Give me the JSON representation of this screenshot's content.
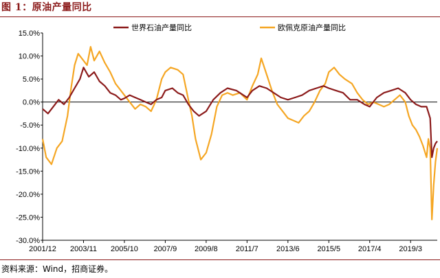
{
  "figure": {
    "label": "图 1：原油产量同比",
    "source": "资料来源：Wind，招商证券。"
  },
  "chart_data": {
    "type": "line",
    "title": "",
    "xlabel": "",
    "ylabel": "",
    "ylim": [
      -30,
      15
    ],
    "yticks": [
      "15.0%",
      "10.0%",
      "5.0%",
      "0.0%",
      "-5.0%",
      "-10.0%",
      "-15.0%",
      "-20.0%",
      "-25.0%",
      "-30.0%"
    ],
    "xticks": [
      "2001/12",
      "2003/11",
      "2005/10",
      "2007/9",
      "2009/8",
      "2011/7",
      "2013/6",
      "2015/5",
      "2017/4",
      "2019/3"
    ],
    "x_domain": [
      "2001/12",
      "2020/6"
    ],
    "legend_position": "top",
    "colors": {
      "world": "#8b1a1a",
      "opec": "#f5a623",
      "zero_line": "#000000"
    },
    "series": [
      {
        "name": "世界石油产量同比",
        "color": "#8b1a1a",
        "points": [
          [
            "2001/12",
            -1.5
          ],
          [
            "2002/3",
            -2.5
          ],
          [
            "2002/6",
            -1.0
          ],
          [
            "2002/9",
            0.5
          ],
          [
            "2002/12",
            -0.5
          ],
          [
            "2003/3",
            1.0
          ],
          [
            "2003/6",
            3.0
          ],
          [
            "2003/9",
            5.0
          ],
          [
            "2003/11",
            7.5
          ],
          [
            "2004/2",
            5.5
          ],
          [
            "2004/5",
            6.5
          ],
          [
            "2004/8",
            4.5
          ],
          [
            "2004/11",
            3.5
          ],
          [
            "2005/2",
            2.0
          ],
          [
            "2005/5",
            1.5
          ],
          [
            "2005/8",
            0.5
          ],
          [
            "2005/10",
            0.8
          ],
          [
            "2006/1",
            1.5
          ],
          [
            "2006/4",
            1.0
          ],
          [
            "2006/7",
            0.5
          ],
          [
            "2006/10",
            0.0
          ],
          [
            "2007/1",
            -0.5
          ],
          [
            "2007/4",
            0.5
          ],
          [
            "2007/7",
            1.0
          ],
          [
            "2007/9",
            2.5
          ],
          [
            "2008/1",
            3.0
          ],
          [
            "2008/4",
            2.0
          ],
          [
            "2008/7",
            1.5
          ],
          [
            "2008/10",
            -0.5
          ],
          [
            "2009/1",
            -2.0
          ],
          [
            "2009/4",
            -3.0
          ],
          [
            "2009/8",
            -2.0
          ],
          [
            "2009/12",
            0.5
          ],
          [
            "2010/4",
            2.0
          ],
          [
            "2010/8",
            3.0
          ],
          [
            "2011/1",
            2.5
          ],
          [
            "2011/7",
            1.0
          ],
          [
            "2011/10",
            2.5
          ],
          [
            "2012/2",
            3.5
          ],
          [
            "2012/6",
            3.0
          ],
          [
            "2012/10",
            2.0
          ],
          [
            "2013/2",
            1.0
          ],
          [
            "2013/6",
            0.5
          ],
          [
            "2013/10",
            1.0
          ],
          [
            "2014/2",
            1.5
          ],
          [
            "2014/6",
            2.5
          ],
          [
            "2014/10",
            3.0
          ],
          [
            "2015/2",
            3.5
          ],
          [
            "2015/5",
            3.0
          ],
          [
            "2015/9",
            2.5
          ],
          [
            "2016/1",
            2.0
          ],
          [
            "2016/5",
            0.5
          ],
          [
            "2016/9",
            0.5
          ],
          [
            "2017/1",
            -0.5
          ],
          [
            "2017/4",
            -1.0
          ],
          [
            "2017/8",
            1.0
          ],
          [
            "2017/12",
            2.0
          ],
          [
            "2018/4",
            2.5
          ],
          [
            "2018/8",
            3.0
          ],
          [
            "2018/12",
            2.0
          ],
          [
            "2019/3",
            0.5
          ],
          [
            "2019/6",
            -0.5
          ],
          [
            "2019/9",
            -1.0
          ],
          [
            "2019/12",
            -1.0
          ],
          [
            "2020/2",
            -3.5
          ],
          [
            "2020/3",
            -12.0
          ],
          [
            "2020/4",
            -10.0
          ],
          [
            "2020/5",
            -9.0
          ],
          [
            "2020/6",
            -8.5
          ]
        ]
      },
      {
        "name": "欧佩克原油产量同比",
        "color": "#f5a623",
        "points": [
          [
            "2001/12",
            -8.0
          ],
          [
            "2002/2",
            -12.0
          ],
          [
            "2002/5",
            -13.5
          ],
          [
            "2002/8",
            -10.0
          ],
          [
            "2002/11",
            -8.5
          ],
          [
            "2003/2",
            -3.0
          ],
          [
            "2003/4",
            3.0
          ],
          [
            "2003/6",
            8.0
          ],
          [
            "2003/8",
            10.5
          ],
          [
            "2003/11",
            9.0
          ],
          [
            "2004/1",
            8.0
          ],
          [
            "2004/3",
            12.0
          ],
          [
            "2004/5",
            9.0
          ],
          [
            "2004/8",
            11.0
          ],
          [
            "2004/11",
            8.5
          ],
          [
            "2005/2",
            6.5
          ],
          [
            "2005/5",
            4.0
          ],
          [
            "2005/8",
            2.5
          ],
          [
            "2005/10",
            1.5
          ],
          [
            "2006/1",
            0.0
          ],
          [
            "2006/4",
            -1.5
          ],
          [
            "2006/7",
            -0.5
          ],
          [
            "2006/10",
            -1.0
          ],
          [
            "2007/1",
            -2.0
          ],
          [
            "2007/4",
            0.5
          ],
          [
            "2007/7",
            5.0
          ],
          [
            "2007/9",
            6.5
          ],
          [
            "2007/12",
            7.5
          ],
          [
            "2008/4",
            7.0
          ],
          [
            "2008/7",
            6.0
          ],
          [
            "2008/10",
            0.5
          ],
          [
            "2008/12",
            -3.0
          ],
          [
            "2009/2",
            -8.0
          ],
          [
            "2009/5",
            -12.5
          ],
          [
            "2009/8",
            -11.0
          ],
          [
            "2009/11",
            -7.0
          ],
          [
            "2010/2",
            -1.0
          ],
          [
            "2010/5",
            1.5
          ],
          [
            "2010/8",
            2.0
          ],
          [
            "2010/11",
            1.5
          ],
          [
            "2011/3",
            2.0
          ],
          [
            "2011/7",
            0.5
          ],
          [
            "2011/10",
            3.5
          ],
          [
            "2012/1",
            6.0
          ],
          [
            "2012/3",
            9.5
          ],
          [
            "2012/6",
            6.0
          ],
          [
            "2012/9",
            2.5
          ],
          [
            "2012/12",
            -0.5
          ],
          [
            "2013/3",
            -2.0
          ],
          [
            "2013/6",
            -3.5
          ],
          [
            "2013/9",
            -4.0
          ],
          [
            "2013/12",
            -4.5
          ],
          [
            "2014/3",
            -3.0
          ],
          [
            "2014/6",
            -2.0
          ],
          [
            "2014/9",
            0.0
          ],
          [
            "2014/12",
            2.5
          ],
          [
            "2015/3",
            4.0
          ],
          [
            "2015/5",
            6.5
          ],
          [
            "2015/8",
            7.5
          ],
          [
            "2015/11",
            6.0
          ],
          [
            "2016/2",
            5.0
          ],
          [
            "2016/6",
            4.0
          ],
          [
            "2016/9",
            2.0
          ],
          [
            "2016/12",
            0.5
          ],
          [
            "2017/3",
            -0.5
          ],
          [
            "2017/6",
            0.0
          ],
          [
            "2017/9",
            -0.5
          ],
          [
            "2017/12",
            -1.0
          ],
          [
            "2018/3",
            -0.5
          ],
          [
            "2018/6",
            0.5
          ],
          [
            "2018/9",
            1.5
          ],
          [
            "2018/12",
            0.0
          ],
          [
            "2019/2",
            -3.0
          ],
          [
            "2019/4",
            -5.0
          ],
          [
            "2019/6",
            -6.0
          ],
          [
            "2019/8",
            -7.5
          ],
          [
            "2019/10",
            -9.5
          ],
          [
            "2019/12",
            -12.0
          ],
          [
            "2020/1",
            -8.0
          ],
          [
            "2020/2",
            -10.0
          ],
          [
            "2020/3",
            -25.5
          ],
          [
            "2020/4",
            -18.0
          ],
          [
            "2020/5",
            -13.0
          ],
          [
            "2020/6",
            -10.0
          ]
        ]
      }
    ]
  }
}
